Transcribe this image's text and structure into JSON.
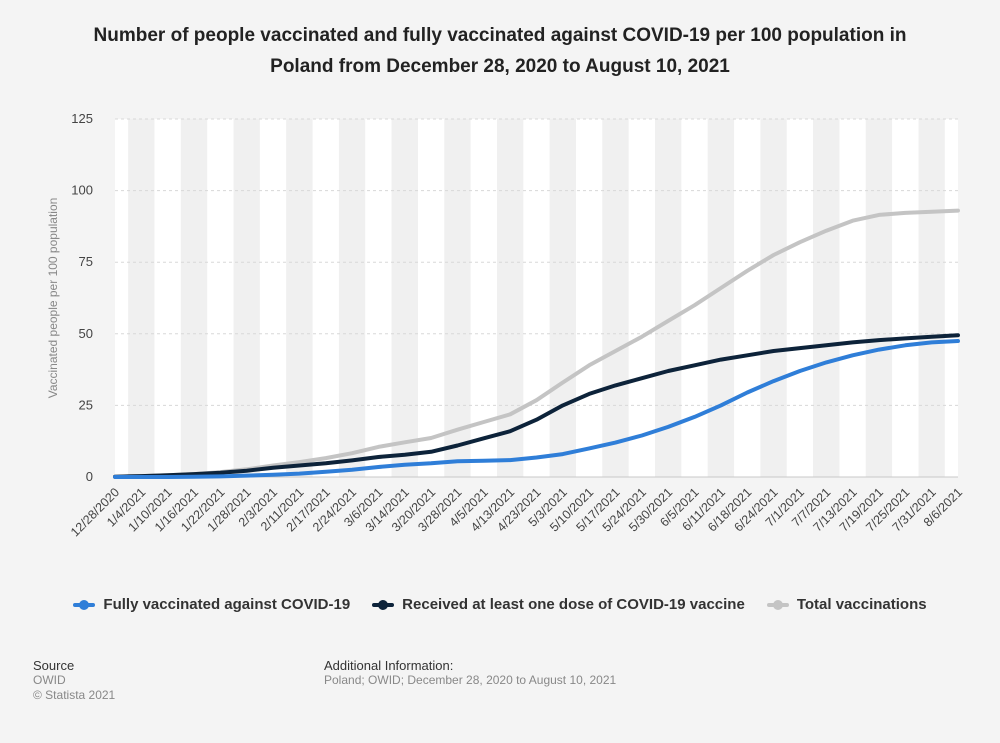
{
  "title": "Number of people vaccinated and fully vaccinated against COVID-19 per 100 population in Poland from December 28, 2020 to August 10, 2021",
  "footer": {
    "source_label": "Source",
    "source_value": "OWID",
    "copyright": "© Statista 2021",
    "additional_label": "Additional Information:",
    "additional_value": "Poland; OWID; December 28, 2020 to August 10, 2021"
  },
  "colors": {
    "fully": "#2f7ed8",
    "one_dose": "#0d233a",
    "total": "#c4c4c4",
    "background": "#f4f4f4",
    "band": "#ffffff"
  },
  "chart_data": {
    "type": "line",
    "title": "Number of people vaccinated and fully vaccinated against COVID-19 per 100 population in Poland from December 28, 2020 to August 10, 2021",
    "xlabel": "",
    "ylabel": "Vaccinated people per 100 population",
    "ylim": [
      0,
      125
    ],
    "yticks": [
      0,
      25,
      50,
      75,
      100,
      125
    ],
    "grid": true,
    "legend_position": "bottom",
    "x_tick_labels": [
      "12/28/2020",
      "1/4/2021",
      "1/10/2021",
      "1/16/2021",
      "1/22/2021",
      "1/28/2021",
      "2/3/2021",
      "2/11/2021",
      "2/17/2021",
      "2/24/2021",
      "3/6/2021",
      "3/14/2021",
      "3/20/2021",
      "3/28/2021",
      "4/5/2021",
      "4/13/2021",
      "4/23/2021",
      "5/3/2021",
      "5/10/2021",
      "5/17/2021",
      "5/24/2021",
      "5/30/2021",
      "6/5/2021",
      "6/11/2021",
      "6/18/2021",
      "6/24/2021",
      "7/1/2021",
      "7/7/2021",
      "7/13/2021",
      "7/19/2021",
      "7/25/2021",
      "7/31/2021",
      "8/6/2021"
    ],
    "series": [
      {
        "name": "Fully vaccinated against COVID-19",
        "color": "#2f7ed8",
        "values": [
          0.0,
          0.0,
          0.0,
          0.1,
          0.2,
          0.5,
          0.8,
          1.2,
          1.8,
          2.5,
          3.5,
          4.3,
          4.8,
          5.5,
          5.7,
          5.9,
          6.8,
          8.0,
          10.0,
          12.0,
          14.5,
          17.5,
          21.0,
          25.0,
          29.5,
          33.5,
          37.0,
          40.0,
          42.5,
          44.5,
          46.0,
          47.0,
          47.5
        ]
      },
      {
        "name": "Received at least one dose of COVID-19 vaccine",
        "color": "#0d233a",
        "values": [
          0.1,
          0.3,
          0.6,
          1.0,
          1.5,
          2.2,
          3.2,
          4.0,
          4.8,
          5.8,
          7.0,
          7.8,
          8.8,
          11.0,
          13.5,
          16.0,
          20.0,
          25.0,
          29.0,
          32.0,
          34.5,
          37.0,
          39.0,
          41.0,
          42.5,
          44.0,
          45.0,
          46.0,
          47.0,
          47.8,
          48.4,
          49.0,
          49.5
        ]
      },
      {
        "name": "Total vaccinations",
        "color": "#c4c4c4",
        "values": [
          0.1,
          0.3,
          0.6,
          1.0,
          1.7,
          2.7,
          4.0,
          5.2,
          6.6,
          8.3,
          10.5,
          12.1,
          13.6,
          16.5,
          19.2,
          21.9,
          26.8,
          33.0,
          39.0,
          44.0,
          49.0,
          54.5,
          60.0,
          66.0,
          72.0,
          77.5,
          82.0,
          86.0,
          89.5,
          91.5,
          92.2,
          92.6,
          93.0
        ]
      }
    ]
  }
}
